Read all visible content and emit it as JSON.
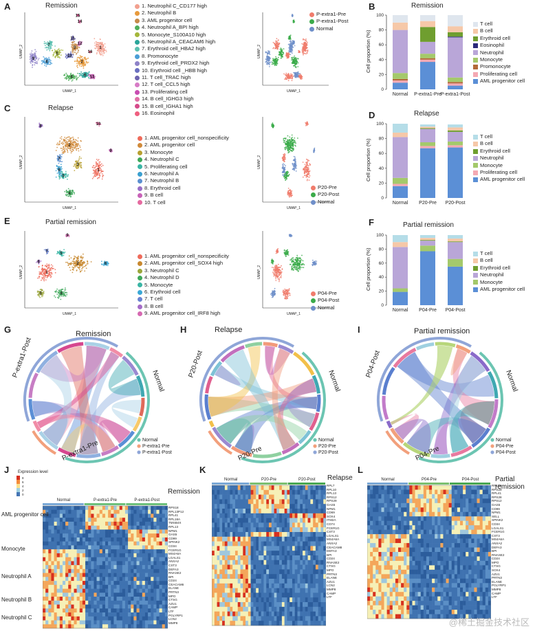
{
  "panels": {
    "A": {
      "label": "A",
      "title": "Remission",
      "xaxis": "UMAP_1",
      "yaxis": "UMAP_2",
      "clusters": [
        "1. Neutrophil C_CD177 high",
        "2. Neutrophil B",
        "3. AML progenitor cell",
        "4. Neutrophil A_BPI high",
        "5. Monocyte_S100A10 high",
        "6. Neutrophil A_CEACAM6 high",
        "7. Erythroid cell_HBA2 high",
        "8. Promonocyte",
        "9. Erythroid cell_PRDX2 high",
        "10. Erythroid cell _HBB high",
        "11. T cell_TRAC high",
        "12. T cell_CCL5 high",
        "13. Proliferating cell",
        "14. B cell_IGHG3 high",
        "15. B cell_IGHA1 high",
        "16. Eosinophil"
      ],
      "colors": [
        "#f2a08f",
        "#e89a3c",
        "#c58a4a",
        "#4fae5b",
        "#a4b63a",
        "#2aa59a",
        "#5bc0b0",
        "#4a9ed6",
        "#8e82c8",
        "#6a6fc0",
        "#6f64b0",
        "#d77bc6",
        "#c84db1",
        "#e06fa6",
        "#d64a8a",
        "#ef5f7f"
      ],
      "numbers": [
        "1",
        "2",
        "3",
        "4",
        "5",
        "6",
        "7",
        "8",
        "9",
        "10",
        "11",
        "12",
        "13",
        "14",
        "15",
        "16"
      ]
    },
    "A2": {
      "legend": [
        "P-extra1-Pre",
        "P-extra1-Post",
        "Normal"
      ],
      "legend_colors": [
        "#f07c6c",
        "#3bab4a",
        "#6f8fc9"
      ],
      "xaxis": "UMAP_1",
      "yaxis": "UMAP_2"
    },
    "B": {
      "label": "B",
      "title": "Remission",
      "ylabel": "Cell proportion (%)",
      "legend": [
        "T cell",
        "B cell",
        "Erythroid cell",
        "Eosinophil",
        "Neutrophil",
        "Monocyte",
        "Promonocyte",
        "Proliferating cell",
        "AML progenitor  cell"
      ]
    },
    "C": {
      "label": "C",
      "title": "Relapse",
      "xaxis": "UMAP_1",
      "yaxis": "UMAP_2",
      "clusters": [
        "1. AML progenitor cell_nonspecificity",
        "2. AML progenitor cell",
        "3. Monocyte",
        "4. Neutrophil C",
        "5. Proliferating cell",
        "6. Neutrophil A",
        "7. Neutrophil B",
        "8. Erythroid cell",
        "9. B cell",
        "10. T cell"
      ],
      "colors": [
        "#ef6b5b",
        "#d08a3a",
        "#b8a030",
        "#3ea85a",
        "#3ab5a5",
        "#3aa0d0",
        "#5a8fd0",
        "#9a6fc6",
        "#c862b8",
        "#e56aa0"
      ],
      "numbers": [
        "1",
        "2",
        "3",
        "4",
        "5",
        "6",
        "7",
        "8",
        "9",
        "10"
      ]
    },
    "C2": {
      "legend": [
        "P20-Pre",
        "P20-Post",
        "Normal"
      ],
      "legend_colors": [
        "#f07c6c",
        "#3bab4a",
        "#6f8fc9"
      ],
      "xaxis": "UMAP_1",
      "yaxis": "UMAP_2"
    },
    "D": {
      "label": "D",
      "title": "Relapse",
      "ylabel": "Cell proportion (%)",
      "legend": [
        "T cell",
        "B cell",
        "Erythroid cell",
        "Neutrophil",
        "Monocyte",
        "Proliferating cell",
        "AML progenitor cell"
      ]
    },
    "E": {
      "label": "E",
      "title": "Partial remission",
      "xaxis": "UMAP_1",
      "yaxis": "UMAP_2",
      "clusters": [
        "1. AML progenitor cell_nonspecificity",
        "2. AML progenitor cell_SOX4 high",
        "3. Neutrophil C",
        "4. Neutrophil D",
        "5. Monocyte",
        "6. Erythroid cell",
        "7. T cell",
        "8. B cell",
        "9. AML progenitor cell_IRF8 high"
      ],
      "colors": [
        "#ef6b5b",
        "#c8882f",
        "#9aa63a",
        "#3ea85a",
        "#3ab5a5",
        "#3aa8d6",
        "#6a82d0",
        "#a56cc8",
        "#d669b2"
      ],
      "numbers": [
        "1",
        "2",
        "3",
        "4",
        "5",
        "6",
        "7",
        "8",
        "9"
      ]
    },
    "E2": {
      "legend": [
        "P04-Pre",
        "P04-Post",
        "Normal"
      ],
      "legend_colors": [
        "#f07c6c",
        "#3bab4a",
        "#6f8fc9"
      ],
      "xaxis": "UMAP_1",
      "yaxis": "UMAP_2"
    },
    "F": {
      "label": "F",
      "title": "Partial remission",
      "ylabel": "Cell proportion (%)",
      "legend": [
        "T cell",
        "B cell",
        "Erythroid cell",
        "Neutrophil",
        "Monocyte",
        "AML progenitor cell"
      ]
    },
    "G": {
      "label": "G",
      "title": "Remission",
      "sectors": [
        "P-extra1-Post",
        "Normal",
        "P-extra1-Pre"
      ],
      "legend": [
        "Normal",
        "P-extra1-Pre",
        "P-extra1-Post"
      ]
    },
    "H": {
      "label": "H",
      "title": "Relapse",
      "sectors": [
        "P20-Post",
        "Normal",
        "P20-Pre"
      ],
      "legend": [
        "Normal",
        "P20-Pre",
        "P20-Post"
      ]
    },
    "I": {
      "label": "I",
      "title": "Partial remission",
      "sectors": [
        "P04-Post",
        "Normal",
        "P04-Pre"
      ],
      "legend": [
        "Normal",
        "P04-Pre",
        "P04-Post"
      ]
    },
    "J": {
      "label": "J",
      "title": "Remission",
      "scale_title": "Expression level",
      "scale_ticks": [
        "8",
        "6",
        "4",
        "2",
        "0"
      ],
      "groups": [
        "Normal",
        "P-extra1-Pre",
        "P-extra1-Post"
      ],
      "rowgroups": [
        "AML progenitor cell",
        "Monocyte",
        "Neutrophil A",
        "Neutrophil B",
        "Neutrophil C"
      ],
      "genes": [
        "RPS18",
        "RPL13P12",
        "RPL41",
        "RPL18A",
        "TMSB4X",
        "RPL13",
        "NPM1",
        "GAS5",
        "CD99",
        "SPINK2",
        "CD34",
        "FCER1G",
        "MS4A6A",
        "LGALS1",
        "ANXA2",
        "CST3",
        "DEFA3",
        "RNASE2",
        "BPI",
        "CD24",
        "CEACAM6",
        "ELANE",
        "PRTN3",
        "MPO",
        "CTSG",
        "AZU1",
        "CAMP",
        "LTF",
        "PGLYRP1",
        "LCN2",
        "MMP8"
      ]
    },
    "K": {
      "label": "K",
      "title": "Relapse",
      "groups": [
        "Normal",
        "P20-Pre",
        "P20-Post"
      ],
      "genes": [
        "RPL7",
        "RPL10",
        "RPL13",
        "RPS12",
        "RPS29",
        "GAS5",
        "NPM1",
        "CD69",
        "SOX4",
        "ITM2A",
        "CD74",
        "FCER1G",
        "CST3",
        "LGALS1",
        "MS4A6A",
        "ANXA2",
        "CEACAM8",
        "DEFA3",
        "BPI",
        "CD24",
        "RNASE2",
        "CTSG",
        "MPO",
        "PRTN3",
        "ELANE",
        "AZU1",
        "LCN2",
        "MMP8",
        "CAMP",
        "LTF"
      ]
    },
    "L": {
      "label": "L",
      "title": "Partial remission",
      "groups": [
        "Normal",
        "P04-Pre",
        "P04-Post"
      ],
      "genes": [
        "RPL39",
        "RPS29",
        "RPL41",
        "RPS28",
        "RPS12",
        "GAS5",
        "CD99",
        "NPM1",
        "SELL",
        "SPINK2",
        "CD34",
        "LGALS1",
        "FCER1G",
        "CST3",
        "MS4A6A",
        "ANXA2",
        "DEFA3",
        "BPI",
        "RNASE2",
        "CD24",
        "MPO",
        "CTSG",
        "SOX4",
        "AZU1",
        "PRTN3",
        "ELANE",
        "PGLYRP1",
        "MMP8",
        "CAMP",
        "LTF"
      ]
    },
    "watermark": "@稀土掘金技术社区"
  },
  "chart_data": [
    {
      "type": "bar",
      "panel": "B",
      "title": "Remission",
      "ylabel": "Cell proportion (%)",
      "ylim": [
        0,
        100
      ],
      "categories": [
        "Normal",
        "P-extra1-Pre",
        "P-extra1-Post"
      ],
      "series": [
        {
          "name": "AML progenitor  cell",
          "color": "#5b8fd6",
          "values": [
            9,
            37,
            5
          ]
        },
        {
          "name": "Proliferating cell",
          "color": "#f4a9b3",
          "values": [
            3,
            3,
            3
          ]
        },
        {
          "name": "Promonocyte",
          "color": "#b36a3a",
          "values": [
            2,
            2,
            2
          ]
        },
        {
          "name": "Monocyte",
          "color": "#a4c96b",
          "values": [
            8,
            6,
            6
          ]
        },
        {
          "name": "Neutrophil",
          "color": "#b9a6d8",
          "values": [
            58,
            16,
            54
          ]
        },
        {
          "name": "Eosinophil",
          "color": "#2b2a7a",
          "values": [
            0,
            0,
            1
          ]
        },
        {
          "name": "Erythroid cell",
          "color": "#6f9e2f",
          "values": [
            0,
            20,
            6
          ]
        },
        {
          "name": "B cell",
          "color": "#f6c8a8",
          "values": [
            10,
            8,
            8
          ]
        },
        {
          "name": "T cell",
          "color": "#dfe6ee",
          "values": [
            10,
            8,
            15
          ]
        }
      ]
    },
    {
      "type": "bar",
      "panel": "D",
      "title": "Relapse",
      "ylabel": "Cell proportion (%)",
      "ylim": [
        0,
        100
      ],
      "categories": [
        "Normal",
        "P20-Pre",
        "P20-Post"
      ],
      "series": [
        {
          "name": "AML progenitor cell",
          "color": "#5b8fd6",
          "values": [
            16,
            67,
            68
          ]
        },
        {
          "name": "Proliferating cell",
          "color": "#f4a9b3",
          "values": [
            3,
            3,
            3
          ]
        },
        {
          "name": "Monocyte",
          "color": "#a4c96b",
          "values": [
            8,
            5,
            5
          ]
        },
        {
          "name": "Neutrophil",
          "color": "#b9a6d8",
          "values": [
            55,
            18,
            13
          ]
        },
        {
          "name": "Erythroid cell",
          "color": "#6f9e2f",
          "values": [
            0,
            1,
            2
          ]
        },
        {
          "name": "B cell",
          "color": "#f6c8a8",
          "values": [
            6,
            2,
            4
          ]
        },
        {
          "name": "T cell",
          "color": "#b5dde8",
          "values": [
            12,
            3,
            4
          ]
        }
      ]
    },
    {
      "type": "bar",
      "panel": "F",
      "title": "Partial remission",
      "ylabel": "Cell proportion (%)",
      "ylim": [
        0,
        100
      ],
      "categories": [
        "Normal",
        "P04-Pre",
        "P04-Post"
      ],
      "series": [
        {
          "name": "AML progenitor cell",
          "color": "#5b8fd6",
          "values": [
            19,
            77,
            55
          ]
        },
        {
          "name": "Monocyte",
          "color": "#a4c96b",
          "values": [
            5,
            8,
            11
          ]
        },
        {
          "name": "Neutrophil",
          "color": "#b9a6d8",
          "values": [
            59,
            7,
            24
          ]
        },
        {
          "name": "Erythroid cell",
          "color": "#6f9e2f",
          "values": [
            0,
            1,
            1
          ]
        },
        {
          "name": "B cell",
          "color": "#f6c8a8",
          "values": [
            7,
            3,
            4
          ]
        },
        {
          "name": "T cell",
          "color": "#b5dde8",
          "values": [
            10,
            4,
            5
          ]
        }
      ]
    }
  ]
}
